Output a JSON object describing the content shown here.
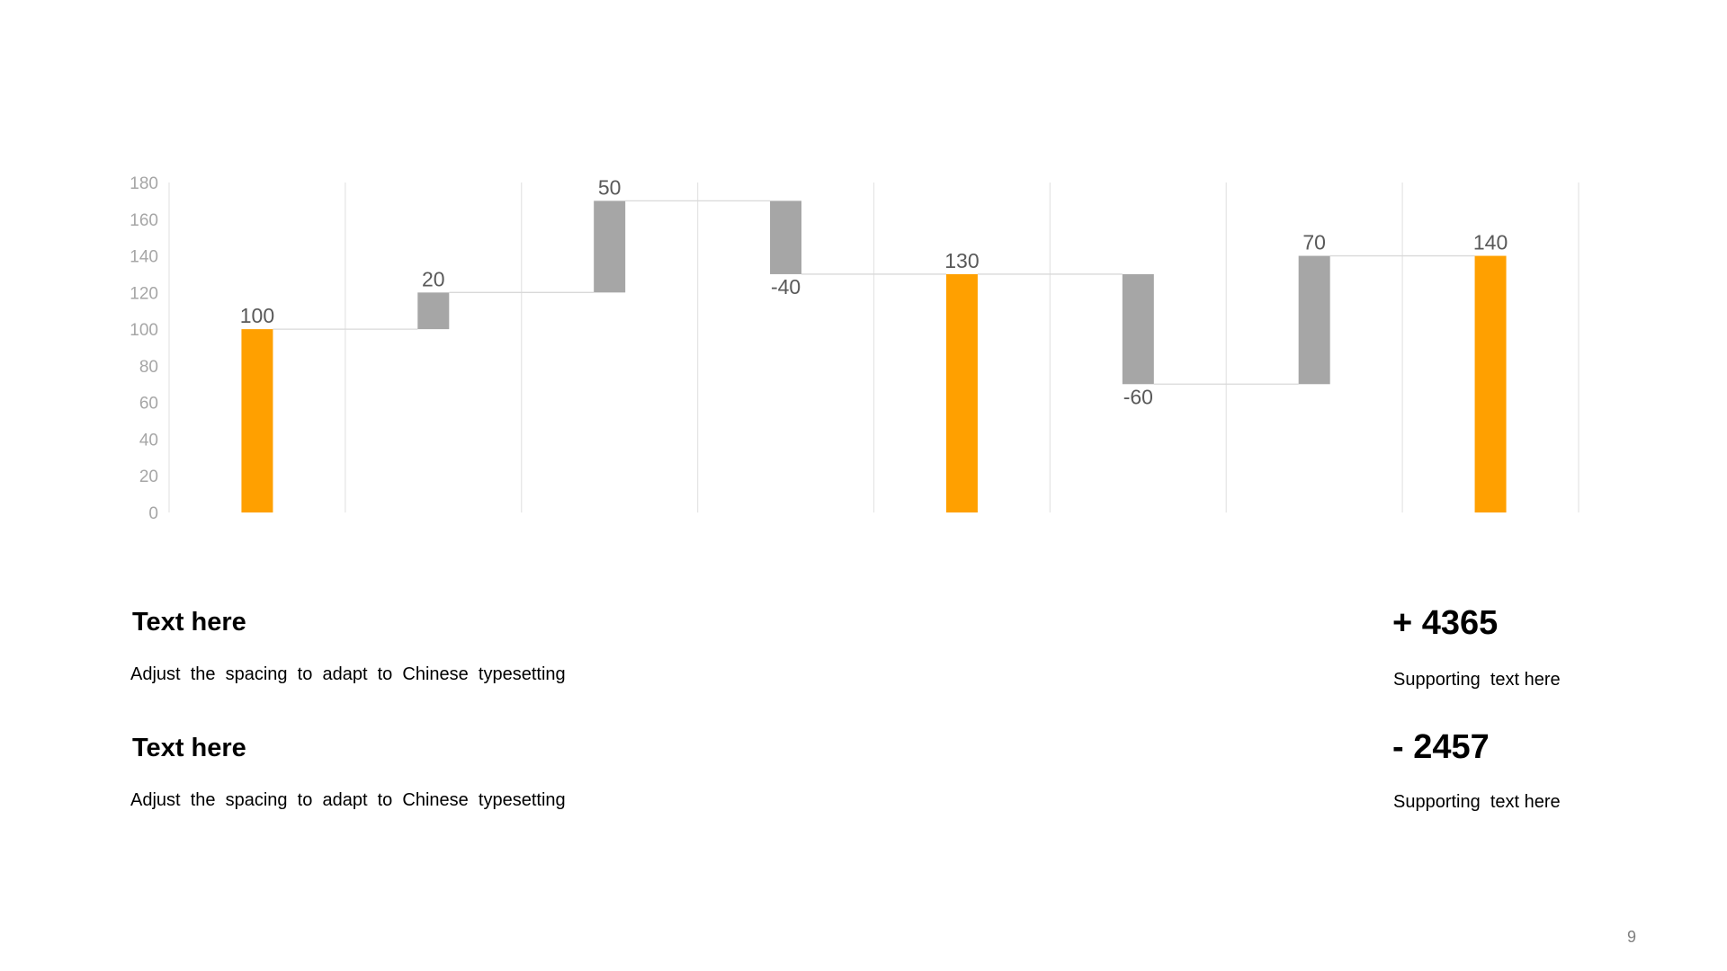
{
  "chart_data": {
    "type": "bar",
    "subtype": "waterfall",
    "values": [
      100,
      20,
      50,
      -40,
      130,
      -60,
      70,
      140
    ],
    "data_labels": [
      "100",
      "20",
      "50",
      "-40",
      "130",
      "-60",
      "70",
      "140"
    ],
    "totals": [
      true,
      false,
      false,
      false,
      true,
      false,
      false,
      true
    ],
    "y_ticks": [
      "0",
      "20",
      "40",
      "60",
      "80",
      "100",
      "120",
      "140",
      "160",
      "180"
    ],
    "ylim": [
      0,
      180
    ],
    "grid": "vertical",
    "colors": {
      "total": "#FFA000",
      "delta": "#A6A6A6",
      "connector": "#D9D9D9",
      "grid": "#E6E6E6"
    }
  },
  "blocks": [
    {
      "heading": "Text here",
      "description": "Adjust  the  spacing  to  adapt  to  Chinese  typesetting"
    },
    {
      "heading": "Text here",
      "description": "Adjust  the  spacing  to  adapt  to  Chinese  typesetting"
    }
  ],
  "stats": [
    {
      "value": "+ 4365",
      "caption": "Supporting  text here"
    },
    {
      "value": "- 2457",
      "caption": "Supporting  text here"
    }
  ],
  "page_number": "9"
}
